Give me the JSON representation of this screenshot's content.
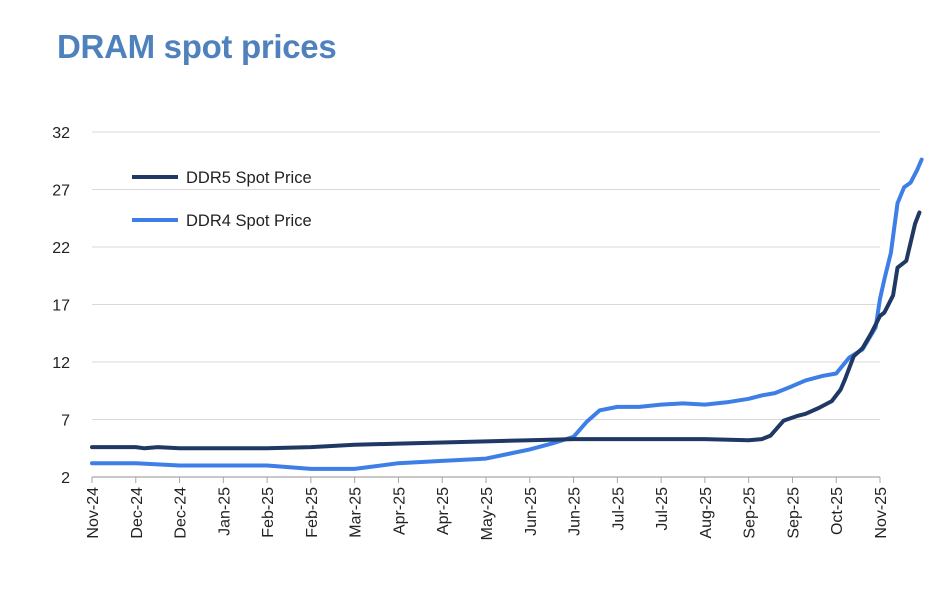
{
  "title": "DRAM spot prices",
  "chart_data": {
    "type": "line",
    "title": "DRAM spot prices",
    "xlabel": "",
    "ylabel": "",
    "ylim": [
      2,
      32
    ],
    "y_ticks": [
      2,
      7,
      12,
      17,
      22,
      27,
      32
    ],
    "x_ticks": [
      "Nov-24",
      "Dec-24",
      "Dec-24",
      "Jan-25",
      "Feb-25",
      "Feb-25",
      "Mar-25",
      "Apr-25",
      "Apr-25",
      "May-25",
      "Jun-25",
      "Jun-25",
      "Jul-25",
      "Jul-25",
      "Aug-25",
      "Sep-25",
      "Sep-25",
      "Oct-25",
      "Nov-25"
    ],
    "grid": true,
    "legend_position": "top-left",
    "series": [
      {
        "name": "DDR5 Spot Price",
        "color": "#1f3864",
        "x": [
          0,
          0.5,
          1,
          1.2,
          1.5,
          2,
          3,
          4,
          5,
          6,
          7,
          8,
          9,
          10,
          11,
          12,
          13,
          14,
          15,
          15.3,
          15.5,
          15.8,
          16.1,
          16.3,
          16.6,
          16.9,
          17.1,
          17.2,
          17.4,
          17.6,
          17.8,
          18.0,
          18.1,
          18.3,
          18.4,
          18.6,
          18.8,
          18.9
        ],
        "values": [
          4.6,
          4.6,
          4.6,
          4.5,
          4.6,
          4.5,
          4.5,
          4.5,
          4.6,
          4.8,
          4.9,
          5.0,
          5.1,
          5.2,
          5.3,
          5.3,
          5.3,
          5.3,
          5.2,
          5.3,
          5.6,
          6.9,
          7.3,
          7.5,
          8.0,
          8.6,
          9.6,
          10.5,
          12.5,
          13.2,
          14.5,
          16.0,
          16.3,
          17.8,
          20.2,
          20.8,
          24.0,
          25.0
        ]
      },
      {
        "name": "DDR4 Spot Price",
        "color": "#3d7fe6",
        "x": [
          0,
          1,
          2,
          3,
          4,
          5,
          6,
          7,
          8,
          9,
          9.5,
          10,
          10.5,
          11,
          11.3,
          11.6,
          12,
          12.5,
          13,
          13.5,
          14,
          14.5,
          15,
          15.3,
          15.6,
          16,
          16.3,
          16.7,
          17.0,
          17.3,
          17.6,
          17.9,
          18.0,
          18.1,
          18.25,
          18.4,
          18.55,
          18.7,
          18.85,
          18.95
        ],
        "values": [
          3.2,
          3.2,
          3.0,
          3.0,
          3.0,
          2.7,
          2.7,
          3.2,
          3.4,
          3.6,
          4.0,
          4.4,
          4.9,
          5.5,
          6.8,
          7.8,
          8.1,
          8.1,
          8.3,
          8.4,
          8.3,
          8.5,
          8.8,
          9.1,
          9.3,
          9.9,
          10.4,
          10.8,
          11.0,
          12.4,
          13.1,
          15.0,
          17.5,
          19.2,
          21.5,
          25.8,
          27.2,
          27.6,
          28.7,
          29.6
        ]
      }
    ]
  }
}
